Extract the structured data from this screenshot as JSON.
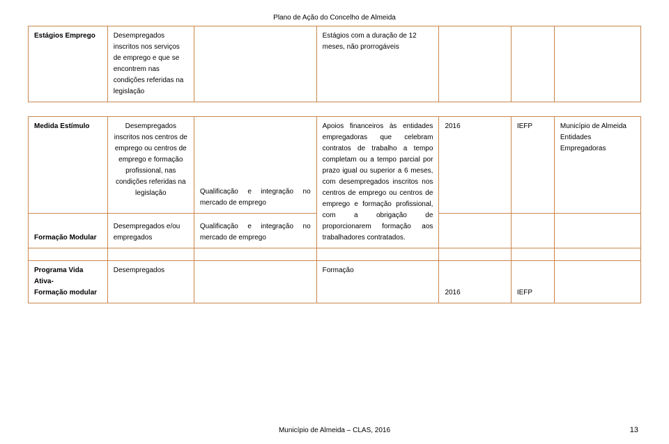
{
  "header": {
    "title": "Plano de Ação do Concelho de Almeida"
  },
  "table1": {
    "row": {
      "c1": "Estágios Emprego",
      "c2": "Desempregados inscritos nos serviços de emprego e que se encontrem nas condições referidas na legislação",
      "c3": "",
      "c4": "Estágios com a duração de 12 meses, não prorrogáveis",
      "c5": "",
      "c6": "",
      "c7": ""
    }
  },
  "table2": {
    "row1": {
      "c1": "Medida Estímulo",
      "c2": "Desempregados inscritos nos centros de emprego ou centros de emprego e formação profissional, nas condições referidas na legislação",
      "c3": "Qualificação e integração no mercado de emprego",
      "c5": "2016",
      "c6": "IEFP",
      "c7a": "Município de Almeida",
      "c7b": "Entidades Empregadoras"
    },
    "row2": {
      "c1": "Formação Modular",
      "c2": "Desempregados e/ou empregados",
      "c3": "Qualificação e integração no mercado de emprego"
    },
    "col4_merged": "Apoios financeiros às entidades empregadoras que celebram contratos de trabalho a tempo completam ou a tempo parcial por prazo igual ou superior a 6 meses, com desempregados inscritos nos centros de emprego ou centros de emprego e formação profissional, com a obrigação de proporcionarem formação aos trabalhadores contratados.",
    "row3": {
      "c1a": "Programa Vida Ativa-",
      "c1b": "Formação modular",
      "c2": "Desempregados",
      "c3": "",
      "c4": "Formação",
      "c5": "2016",
      "c6": "IEFP",
      "c7": ""
    }
  },
  "footer": {
    "text": "Município de Almeida – CLAS, 2016",
    "page": "13"
  }
}
